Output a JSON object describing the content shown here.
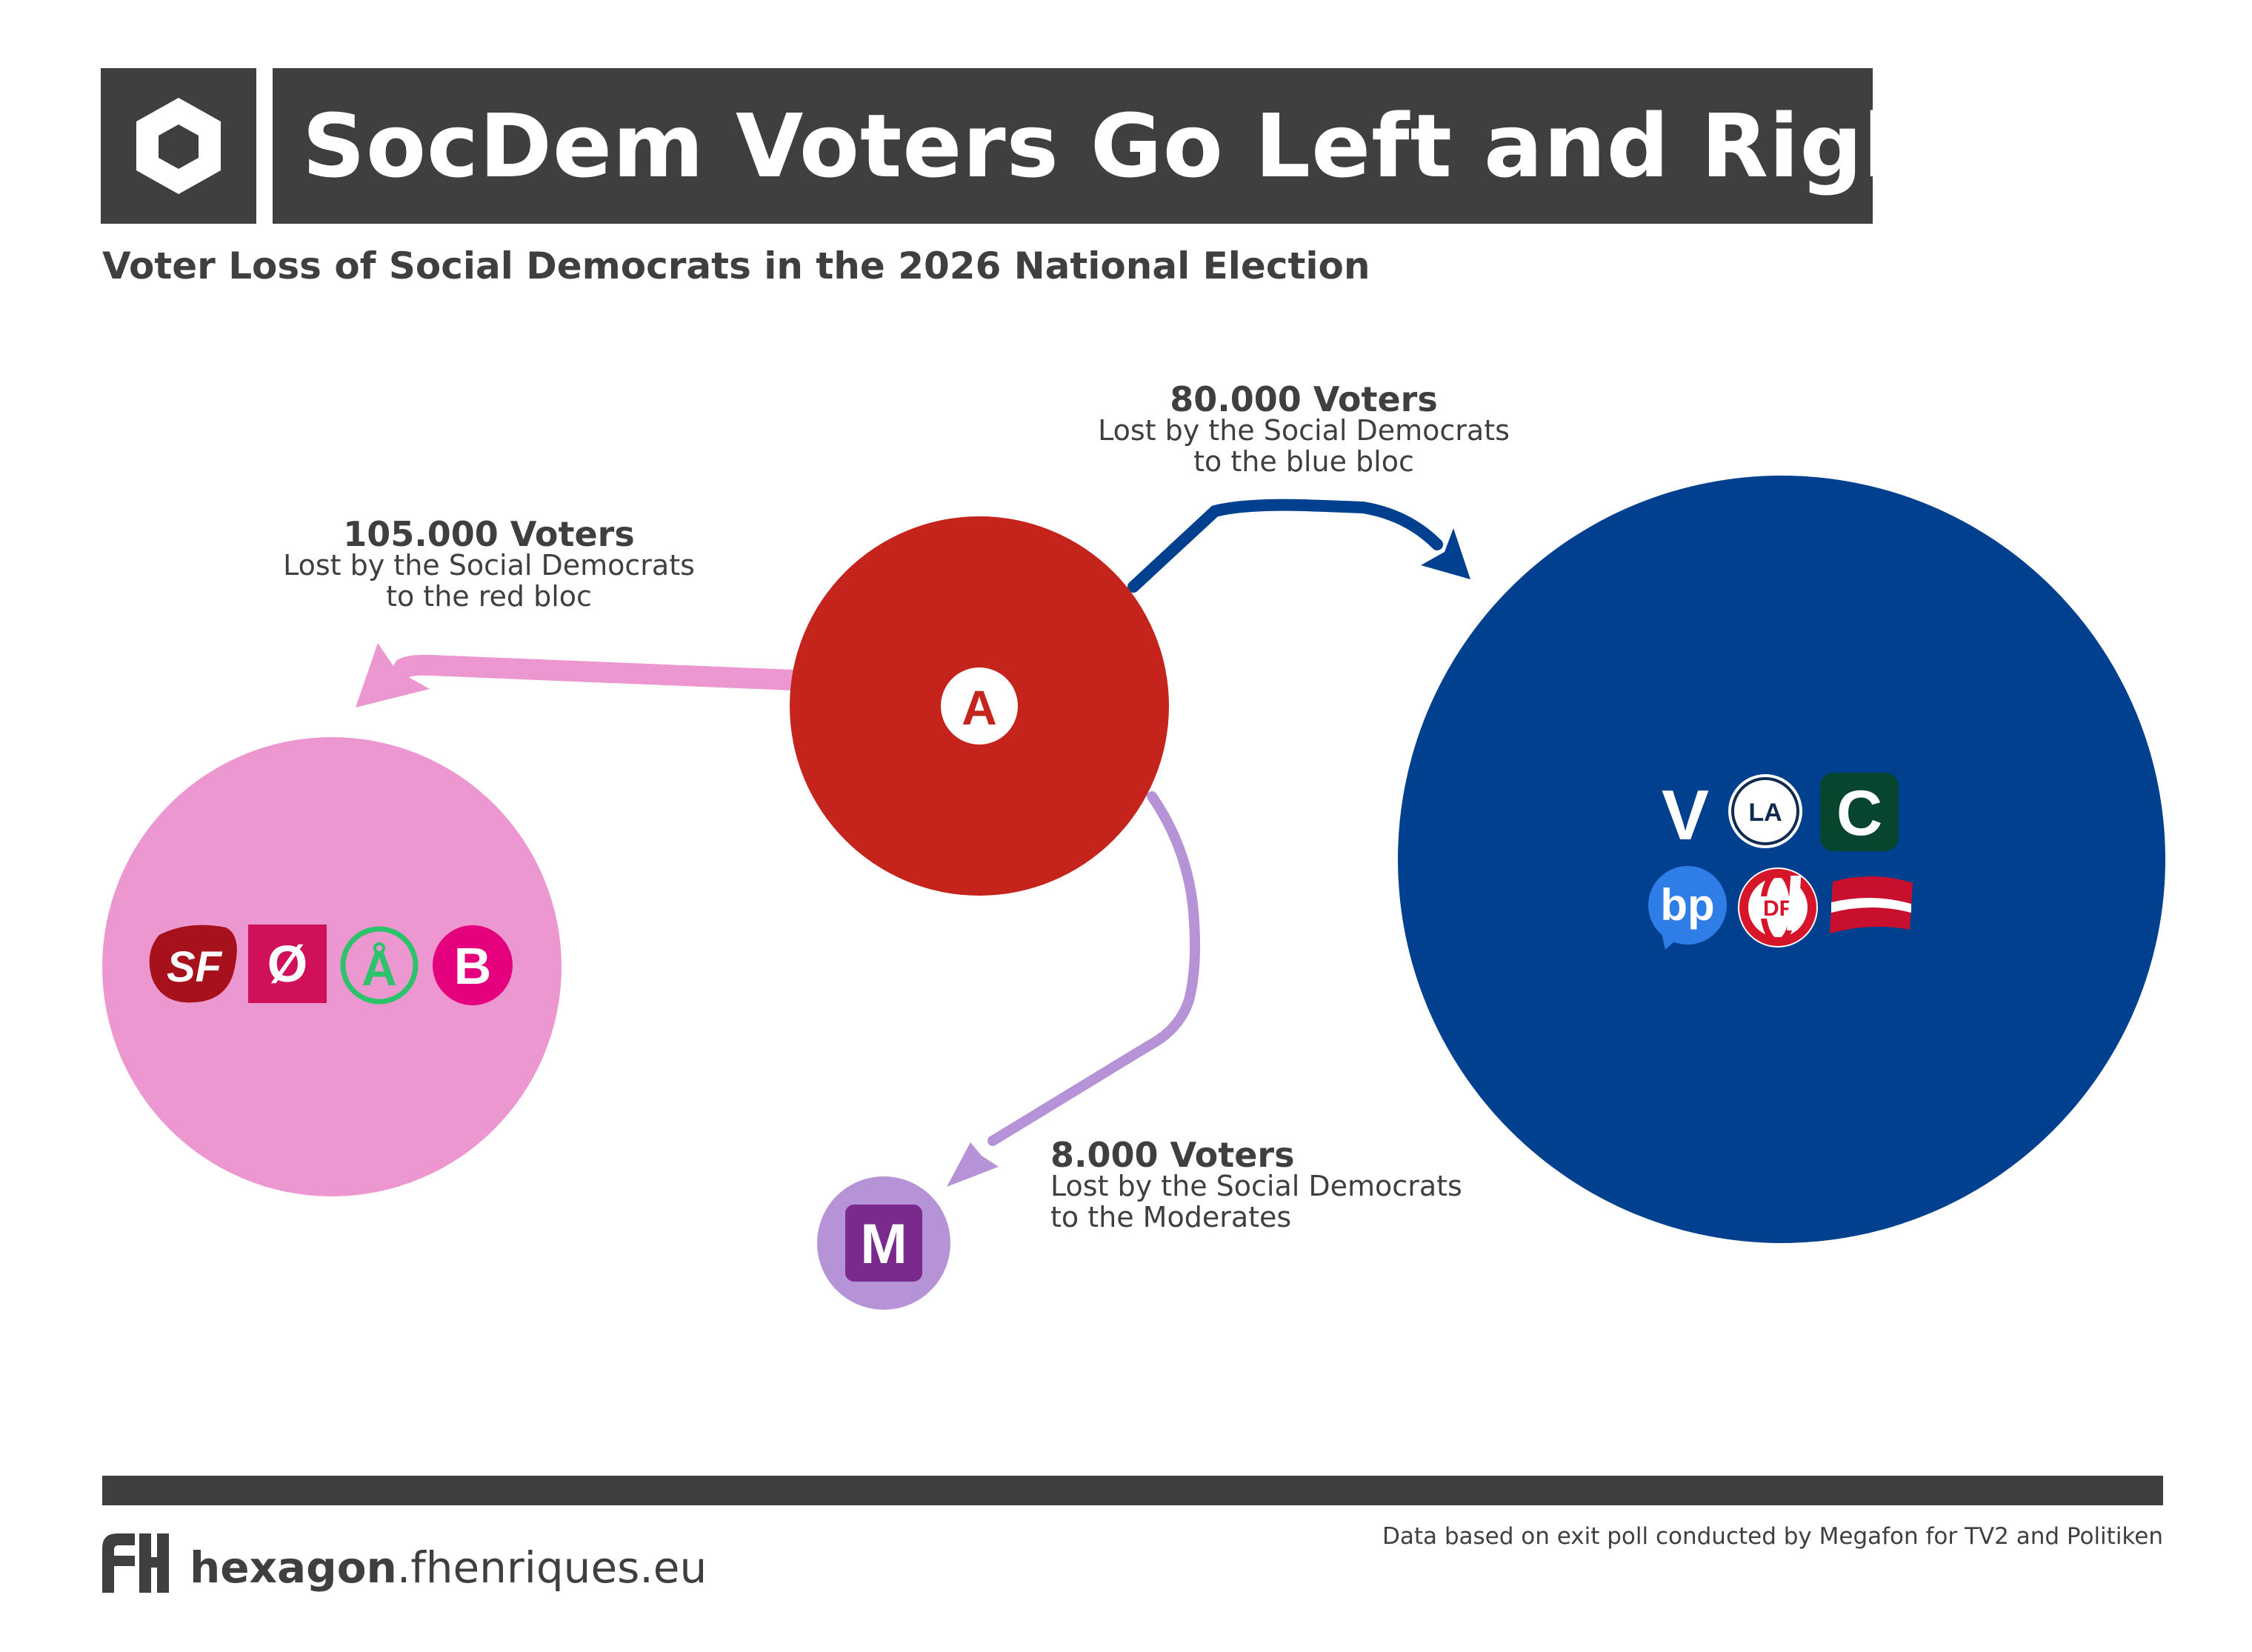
{
  "header": {
    "title": "SocDem Voters Go Left and Right",
    "subtitle": "Voter Loss of Social Democrats in the 2026 National Election"
  },
  "nodes": {
    "source": {
      "party_letter": "A",
      "color": "#c4241c"
    },
    "red_bloc": {
      "color": "#ec97d0",
      "parties": [
        "SF",
        "Ø",
        "Å",
        "B"
      ]
    },
    "blue_bloc": {
      "color": "#00408f",
      "parties": [
        "V",
        "LA",
        "C",
        "bp",
        "DF",
        "Æ"
      ]
    },
    "moderates": {
      "party_letter": "M",
      "color": "#b593d6"
    }
  },
  "flows": {
    "red": {
      "amount": "105.000 Voters",
      "line1": "Lost by the Social Democrats",
      "line2": "to the red bloc",
      "voters": 105000
    },
    "blue": {
      "amount": "80.000 Voters",
      "line1": "Lost by the Social Democrats",
      "line2": "to the blue bloc",
      "voters": 80000
    },
    "moderates": {
      "amount": "8.000 Voters",
      "line1": "Lost by the Social Democrats",
      "line2": "to the Moderates",
      "voters": 8000
    }
  },
  "footer": {
    "brand_bold": "hexagon",
    "brand_rest": ".fhenriques.eu",
    "source": "Data based on exit poll conducted by Megafon for TV2 and Politiken"
  },
  "colors": {
    "dark": "#3f3f3f",
    "red_arrow": "#ec97d0",
    "blue_arrow": "#00408f",
    "moderates_arrow": "#b593d6"
  }
}
